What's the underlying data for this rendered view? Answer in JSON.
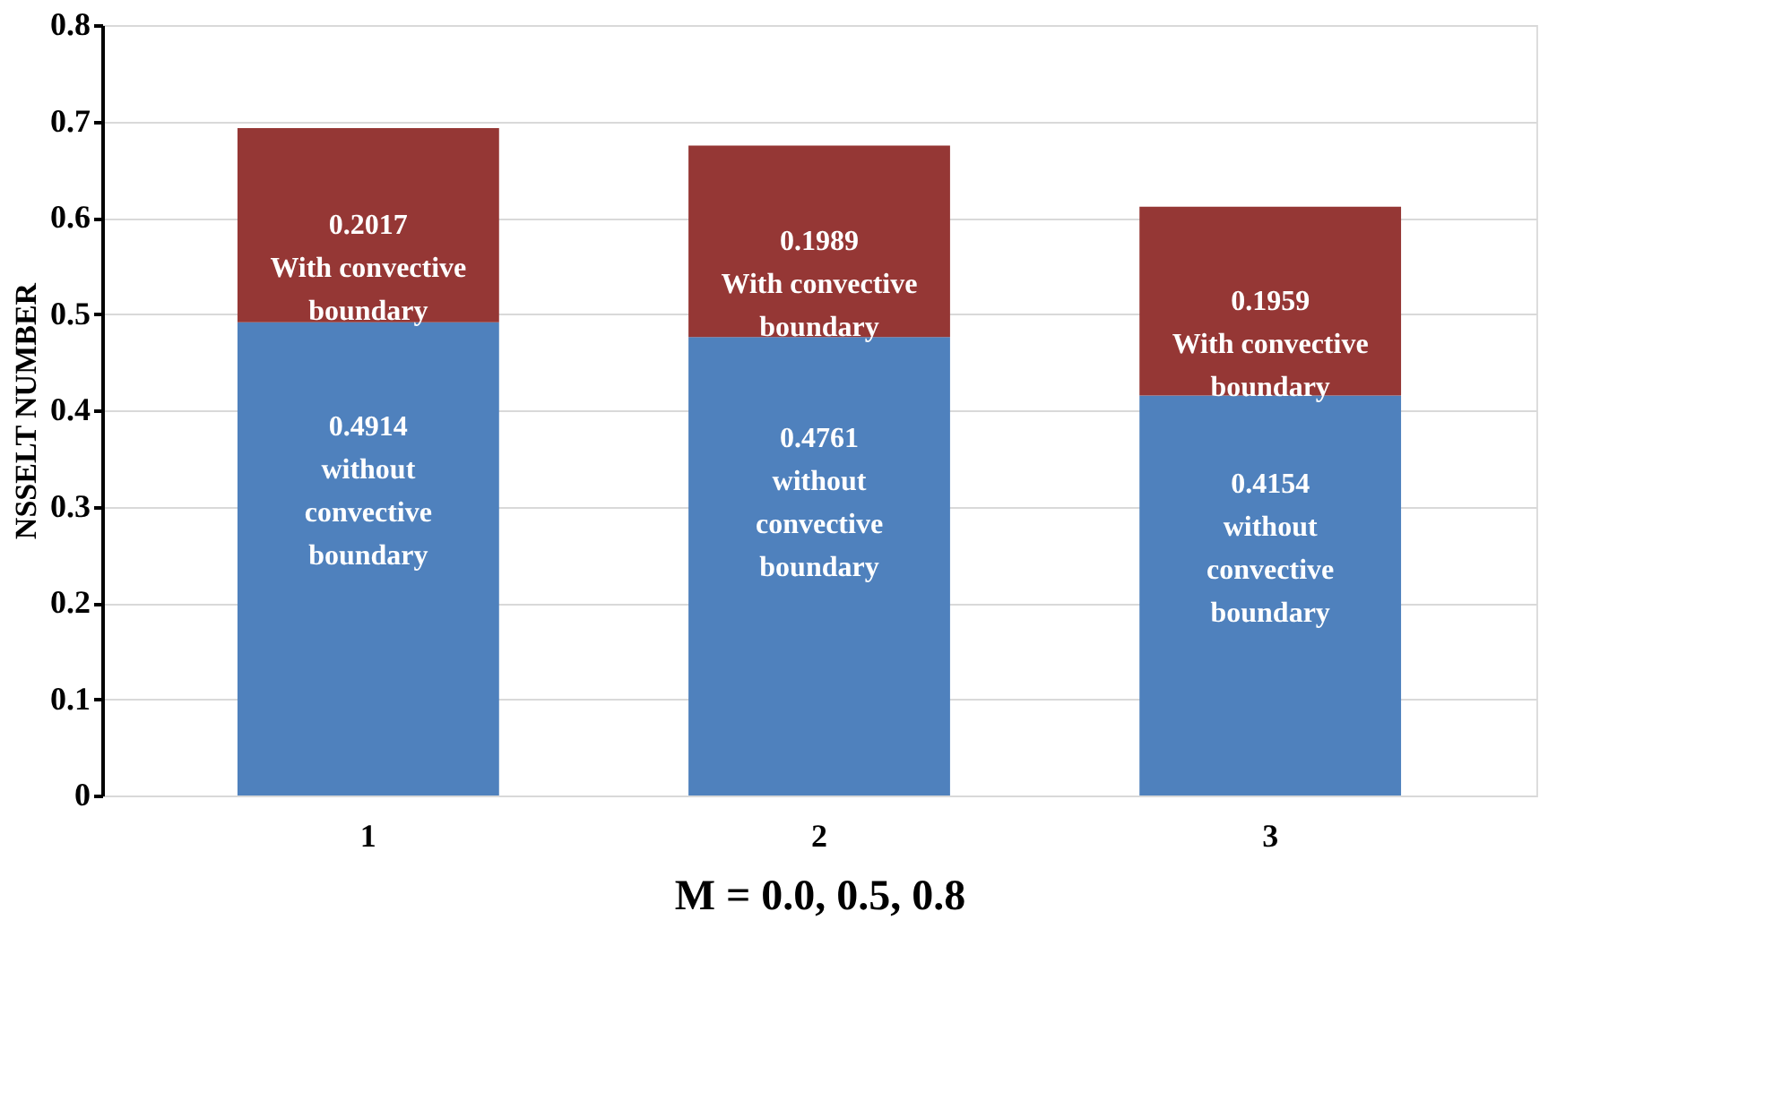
{
  "chart_data": {
    "type": "bar",
    "stacked": true,
    "xlabel": "M = 0.0, 0.5, 0.8",
    "ylabel": "NSSELT NUMBER",
    "categories": [
      "1",
      "2",
      "3"
    ],
    "series": [
      {
        "name": "without convective boundary",
        "color": "#4f81bd",
        "values": [
          0.4914,
          0.4761,
          0.4154
        ]
      },
      {
        "name": "With convective boundary",
        "color": "#953735",
        "values": [
          0.2017,
          0.1989,
          0.1959
        ]
      }
    ],
    "ylim": [
      0,
      0.8
    ],
    "yticks": [
      0,
      0.1,
      0.2,
      0.3,
      0.4,
      0.5,
      0.6,
      0.7,
      0.8
    ],
    "grid": "y",
    "data_labels": true
  }
}
